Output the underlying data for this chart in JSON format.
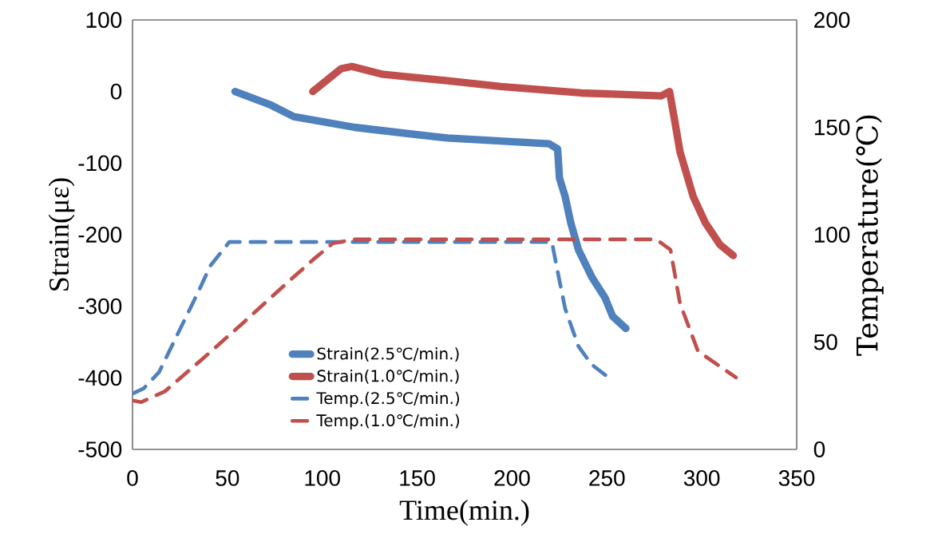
{
  "chart_data": {
    "type": "line",
    "xlabel": "Time(min.)",
    "ylabel": "Strain(με)",
    "y2label": "Temperature(℃)",
    "xlim": [
      0,
      350
    ],
    "xticks": [
      0,
      50,
      100,
      150,
      200,
      250,
      300,
      350
    ],
    "ylim": [
      -500,
      100
    ],
    "yticks": [
      -500,
      -400,
      -300,
      -200,
      -100,
      0,
      100
    ],
    "y2lim": [
      0,
      200
    ],
    "y2ticks": [
      0,
      50,
      100,
      150,
      200
    ],
    "legend": "bottom",
    "series": [
      {
        "name": "Strain(2.5℃/min.)",
        "color": "#4f81bd",
        "line_style": "solid",
        "x": [
          54,
          73,
          85,
          117,
          159,
          166,
          219.6,
          224,
          225,
          228,
          231,
          235,
          242,
          249,
          253,
          260
        ],
        "values": [
          0,
          -19,
          -35,
          -50,
          -63,
          -65,
          -73,
          -80,
          -121,
          -147,
          -184,
          -221,
          -259,
          -288,
          -314,
          -331
        ]
      },
      {
        "name": "Strain(1.0℃/min.)",
        "color": "#c0504d",
        "line_style": "solid",
        "x": [
          95,
          110,
          115.6,
          132,
          166,
          194,
          236.5,
          278.6,
          283,
          285.6,
          288.5,
          295.5,
          302,
          309.6,
          316.6
        ],
        "values": [
          0,
          32,
          35,
          24,
          15,
          7,
          -2,
          -6,
          0,
          -39,
          -84,
          -147,
          -184,
          -214,
          -229
        ]
      },
      {
        "name": "Temp.(2.5℃/min.)",
        "color": "#4f81bd",
        "line_style": "dashed",
        "axis": "y2",
        "x": [
          0,
          5.9,
          14,
          35,
          41,
          51,
          221,
          224,
          228,
          235,
          242,
          252
        ],
        "values": [
          26,
          28.4,
          36,
          74,
          85.5,
          96.6,
          96.6,
          83,
          65.5,
          48,
          39.5,
          32.7
        ]
      },
      {
        "name": "Temp.(1.0℃/min.)",
        "color": "#c0504d",
        "line_style": "dashed",
        "axis": "y2",
        "x": [
          0,
          4.5,
          17,
          38,
          59,
          82,
          96,
          105.6,
          117,
          276,
          283.5,
          288.5,
          298,
          318
        ],
        "values": [
          22.8,
          22,
          27,
          43,
          59.5,
          78,
          89,
          96,
          97.8,
          97.8,
          93,
          68,
          45.7,
          33.5
        ]
      }
    ]
  }
}
